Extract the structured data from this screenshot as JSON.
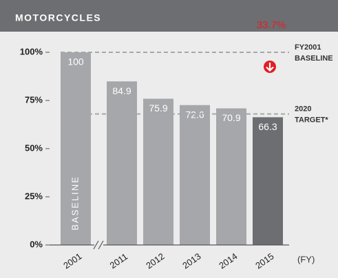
{
  "chart_data": {
    "type": "bar",
    "title": "MOTORCYCLES",
    "categories": [
      "2001",
      "2011",
      "2012",
      "2013",
      "2014",
      "2015"
    ],
    "values": [
      100,
      84.9,
      75.9,
      72.6,
      70.9,
      66.3
    ],
    "colors": [
      "#a6a7aa",
      "#a6a7aa",
      "#a6a7aa",
      "#a6a7aa",
      "#a6a7aa",
      "#6d6e71"
    ],
    "ylim": [
      0,
      100
    ],
    "yticks": [
      {
        "value": 0,
        "label": "0%"
      },
      {
        "value": 25,
        "label": "25%"
      },
      {
        "value": 50,
        "label": "50%"
      },
      {
        "value": 75,
        "label": "75%"
      },
      {
        "value": 100,
        "label": "100%"
      }
    ],
    "x_label": "(FY)",
    "bar_annotation": "BASELINE",
    "reduction_label": "33.7%",
    "reference_lines": [
      {
        "value": 100,
        "label": [
          "FY2001",
          "BASELINE"
        ]
      },
      {
        "value": 68,
        "label": [
          "2020",
          "TARGET*"
        ]
      }
    ]
  }
}
